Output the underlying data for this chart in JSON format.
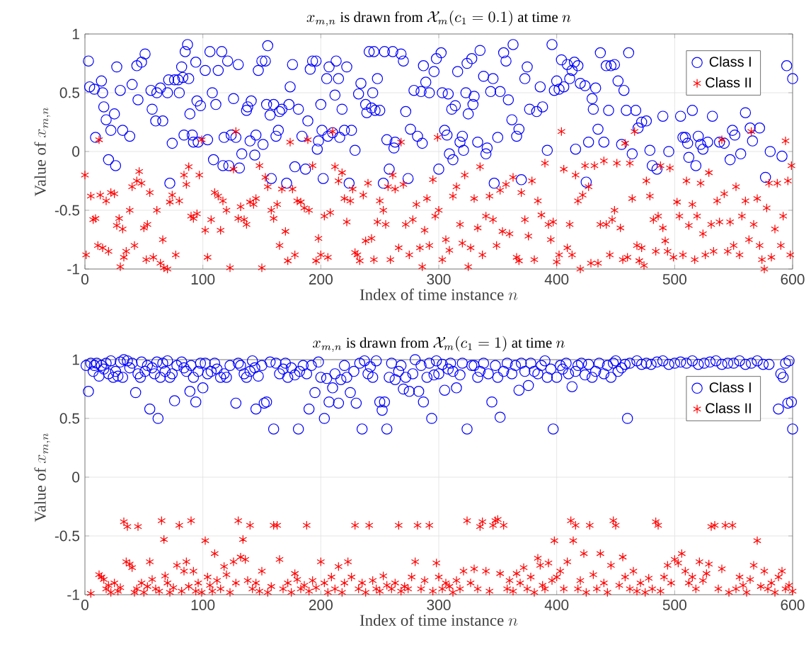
{
  "chart_data": [
    {
      "type": "scatter",
      "title": "x_{m,n} \\mbox{ is drawn from } \\mathcal{X}_m(c_1 = 0.1) \\mbox{ at time } n",
      "xlabel": "\\mbox{Index of time instance } n",
      "ylabel": "\\mbox{Value of } x_{m,n}",
      "xlim": [
        0,
        600
      ],
      "ylim": [
        -1,
        1
      ],
      "xticks": [
        0,
        100,
        200,
        300,
        400,
        500,
        600
      ],
      "yticks": [
        -1,
        -0.5,
        0,
        0.5,
        1
      ],
      "grid": true,
      "legend": "top right",
      "series": [
        {
          "name": "Class I",
          "color": "#0000ff",
          "marker": "circle",
          "x": [
            3,
            4,
            8,
            9,
            14,
            15,
            16,
            18,
            20,
            22,
            25,
            26,
            27,
            30,
            32,
            38,
            40,
            44,
            45,
            48,
            51,
            56,
            57,
            60,
            61,
            64,
            66,
            70,
            71,
            72,
            74,
            76,
            79,
            80,
            82,
            83,
            84,
            85,
            87,
            88,
            89,
            91,
            92,
            94,
            95,
            96,
            98,
            102,
            104,
            106,
            108,
            109,
            111,
            113,
            116,
            117,
            118,
            121,
            122,
            124,
            126,
            128,
            130,
            131,
            133,
            137,
            138,
            140,
            141,
            144,
            145,
            147,
            150,
            151,
            153,
            154,
            155,
            157,
            158,
            160,
            162,
            164,
            165,
            167,
            171,
            173,
            174,
            176,
            178,
            181,
            184,
            187,
            189,
            191,
            193,
            196,
            197,
            198,
            200,
            201,
            202,
            205,
            206,
            207,
            210,
            212,
            213,
            215,
            216,
            218,
            220,
            222,
            224,
            226,
            229,
            232,
            234,
            238,
            239,
            241,
            243,
            244,
            245,
            246,
            248,
            250,
            253,
            254,
            256,
            258,
            261,
            262,
            263,
            268,
            270,
            272,
            274,
            276,
            279,
            282,
            285,
            286,
            287,
            289,
            292,
            296,
            298,
            300,
            302,
            303,
            305,
            307,
            308,
            309,
            311,
            312,
            314,
            316,
            318,
            320,
            321,
            323,
            324,
            325,
            328,
            329,
            330,
            333,
            335,
            338,
            340,
            341,
            344,
            346,
            347,
            350,
            352,
            355,
            357,
            359,
            362,
            363,
            366,
            368,
            370,
            373,
            375,
            377,
            383,
            386,
            388,
            392,
            396,
            398,
            400,
            402,
            404,
            406,
            409,
            411,
            413,
            415,
            416,
            418,
            420,
            424,
            425,
            427,
            430,
            431,
            433,
            435,
            437,
            440,
            442,
            444,
            446,
            449,
            452,
            455,
            457,
            459,
            461,
            464,
            467,
            469,
            472,
            476,
            479,
            481,
            485,
            490,
            495,
            505,
            507,
            509,
            511,
            512,
            515,
            518,
            520,
            522,
            524,
            528,
            532,
            538,
            542,
            547,
            549,
            551,
            556,
            560,
            564,
            566,
            572,
            577,
            581,
            591,
            595,
            600
          ],
          "values": [
            0.77,
            0.55,
            0.53,
            0.12,
            0.6,
            0.5,
            0.38,
            0.27,
            -0.07,
            0.18,
            0.32,
            -0.12,
            0.72,
            0.52,
            0.18,
            0.13,
            0.57,
            0.73,
            0.44,
            0.76,
            0.83,
            0.52,
            0.36,
            0.26,
            0.5,
            0.54,
            0.26,
            0.5,
            0.61,
            -0.27,
            0.07,
            0.61,
            0.61,
            0.5,
            0.72,
            0.63,
            0.14,
            0.85,
            0.91,
            0.62,
            0.32,
            0.14,
            0.08,
            0.76,
            0.43,
            0.08,
            0.39,
            0.69,
            0.1,
            0.85,
            0.5,
            -0.07,
            0.4,
            0.69,
            0.85,
            -0.12,
            0.12,
            0.77,
            -0.12,
            0.14,
            0.45,
            0.12,
            0.74,
            -0.14,
            -0.02,
            0.35,
            0.38,
            0.09,
            0.43,
            -0.03,
            0.14,
            0.69,
            0.77,
            0.06,
            0.77,
            0.4,
            0.9,
            0.31,
            -0.23,
            0.4,
            0.13,
            0.18,
            0.34,
            0.36,
            -0.27,
            0.4,
            0.55,
            0.74,
            -0.13,
            0.36,
            0.13,
            -0.15,
            0.26,
            0.7,
            0.77,
            0.77,
            0.02,
            0.09,
            0.4,
            0.18,
            -0.23,
            0.62,
            0.13,
            0.72,
            0.16,
            0.48,
            0.77,
            0.62,
            0.12,
            0.36,
            0.18,
            0.72,
            -0.27,
            0.18,
            0.01,
            0.49,
            0.58,
            0.4,
            0.33,
            0.85,
            0.37,
            0.5,
            0.85,
            0.35,
            0.62,
            0.35,
            -0.27,
            0.85,
            0.1,
            -0.15,
            0.85,
            0.03,
            0.08,
            0.83,
            0.77,
            0.34,
            -0.23,
            0.19,
            0.52,
            0.13,
            0.51,
            0.07,
            0.73,
            0.59,
            0.5,
            0.68,
            0.79,
            -0.15,
            0.84,
            0.5,
            0.18,
            0.14,
            0.49,
            -0.02,
            0.36,
            -0.07,
            0.39,
            0.68,
            0.08,
            0.13,
            0.01,
            0.5,
            0.75,
            0.32,
            0.79,
            0.4,
            0.47,
            0.08,
            0.86,
            0.64,
            -0.02,
            0.03,
            0.51,
            0.62,
            -0.27,
            0.12,
            0.51,
            0.84,
            0.77,
            0.44,
            0.27,
            0.91,
            0.13,
            0.19,
            -0.24,
            0.62,
            0.72,
            0.36,
            0.34,
            0.55,
            0.38,
            0.01,
            0.91,
            0.52,
            0.6,
            0.53,
            0.78,
            0.55,
            0.74,
            0.62,
            0.69,
            0.76,
            0.02,
            0.73,
            0.58,
            0.56,
            -0.26,
            0.08,
            0.45,
            0.36,
            0.54,
            0.19,
            0.84,
            0.08,
            0.73,
            0.35,
            0.73,
            0.74,
            0.6,
            0.06,
            0.52,
            0.35,
            0.84,
            -0.02,
            0.35,
            0.2,
            0.25,
            0.26,
            0.01,
            -0.12,
            -0.15,
            0.3,
            0.0,
            0.3,
            0.12,
            0.12,
            0.07,
            -0.05,
            0.35,
            -0.12,
            0.13,
            0.06,
            0.02,
            0.08,
            0.3,
            0.08,
            0.07,
            -0.07,
            0.18,
            0.14,
            -0.02,
            0.33,
            0.2,
            0.09,
            0.2,
            -0.22,
            0.0,
            -0.04,
            0.73,
            0.62
          ]
        },
        {
          "name": "Class II",
          "color": "#ff0000",
          "marker": "cross",
          "x": [
            0,
            1,
            5,
            7,
            9,
            11,
            12,
            13,
            15,
            18,
            20,
            22,
            25,
            27,
            29,
            30,
            32,
            33,
            35,
            38,
            40,
            42,
            44,
            46,
            48,
            50,
            52,
            53,
            55,
            58,
            61,
            64,
            66,
            67,
            70,
            72,
            74,
            77,
            80,
            84,
            86,
            88,
            90,
            92,
            95,
            97,
            99,
            102,
            104,
            107,
            110,
            113,
            115,
            117,
            120,
            123,
            126,
            128,
            130,
            132,
            135,
            137,
            140,
            143,
            145,
            148,
            150,
            153,
            155,
            158,
            160,
            163,
            165,
            167,
            170,
            172,
            174,
            176,
            178,
            180,
            183,
            186,
            189,
            190,
            193,
            196,
            198,
            200,
            203,
            206,
            208,
            210,
            212,
            215,
            218,
            220,
            222,
            225,
            227,
            229,
            231,
            233,
            236,
            238,
            240,
            243,
            245,
            248,
            250,
            253,
            255,
            257,
            259,
            261,
            263,
            266,
            268,
            270,
            272,
            275,
            278,
            281,
            284,
            286,
            288,
            290,
            292,
            295,
            297,
            299,
            300,
            303,
            306,
            309,
            312,
            315,
            318,
            320,
            322,
            325,
            327,
            330,
            333,
            335,
            337,
            340,
            343,
            346,
            349,
            352,
            354,
            357,
            360,
            363,
            366,
            368,
            370,
            373,
            376,
            379,
            381,
            384,
            387,
            390,
            393,
            395,
            397,
            400,
            402,
            404,
            406,
            409,
            411,
            413,
            416,
            418,
            420,
            422,
            424,
            427,
            429,
            432,
            435,
            437,
            440,
            442,
            445,
            447,
            449,
            451,
            454,
            456,
            458,
            460,
            462,
            464,
            466,
            468,
            470,
            472,
            474,
            476,
            479,
            482,
            484,
            486,
            488,
            490,
            492,
            494,
            496,
            499,
            502,
            504,
            507,
            510,
            512,
            515,
            517,
            519,
            522,
            524,
            526,
            529,
            531,
            533,
            536,
            538,
            540,
            542,
            545,
            547,
            550,
            552,
            555,
            557,
            560,
            563,
            565,
            567,
            570,
            572,
            574,
            576,
            578,
            580,
            582,
            585,
            587,
            590,
            592,
            594,
            596,
            598,
            599
          ],
          "values": [
            -0.2,
            -0.88,
            -0.38,
            -0.58,
            -0.57,
            -0.8,
            0.1,
            -0.37,
            -0.82,
            -0.42,
            -0.85,
            -0.35,
            -0.36,
            -0.63,
            -0.57,
            -0.98,
            -0.66,
            -0.9,
            -0.85,
            -0.5,
            -0.3,
            -0.8,
            -0.25,
            -0.17,
            -0.27,
            -0.65,
            -0.92,
            -0.62,
            -0.35,
            -0.9,
            -0.5,
            -0.95,
            -0.75,
            -0.99,
            -1.0,
            -0.43,
            -0.37,
            -0.88,
            -0.42,
            -0.2,
            -0.28,
            -0.13,
            -0.55,
            -0.57,
            -0.53,
            -0.2,
            0.1,
            -0.67,
            -0.9,
            -0.58,
            -0.35,
            -0.38,
            -0.67,
            -0.42,
            -0.5,
            -0.99,
            -0.15,
            0.17,
            -0.57,
            -0.47,
            -0.58,
            -0.62,
            -0.43,
            -0.45,
            -0.4,
            -0.12,
            -0.99,
            -0.22,
            -0.3,
            -0.5,
            -0.57,
            -0.45,
            -0.8,
            -0.32,
            -0.68,
            -0.93,
            0.08,
            -0.32,
            -0.88,
            -0.42,
            -0.43,
            -0.48,
            0.1,
            -0.5,
            -0.12,
            -0.93,
            -0.74,
            -0.88,
            -0.55,
            -0.9,
            -0.52,
            0.17,
            -0.13,
            -0.25,
            -0.18,
            -0.4,
            -0.6,
            -0.42,
            -0.32,
            -0.86,
            -0.88,
            -0.93,
            -0.37,
            -0.76,
            -0.27,
            -0.74,
            -0.92,
            -0.6,
            -0.42,
            -0.5,
            -0.62,
            -0.3,
            -0.92,
            -0.2,
            -0.32,
            -0.82,
            0.08,
            -0.28,
            -0.62,
            -0.88,
            -0.58,
            -0.45,
            -0.82,
            -0.98,
            -0.67,
            -0.4,
            -0.8,
            -0.24,
            -0.55,
            0.12,
            -0.5,
            -0.92,
            -0.75,
            -0.84,
            -0.38,
            -0.3,
            -0.62,
            -0.78,
            -0.2,
            -0.98,
            -0.82,
            -0.4,
            -0.65,
            -0.13,
            -0.88,
            -0.55,
            -0.38,
            -0.58,
            -0.8,
            -0.33,
            -0.68,
            -0.28,
            -0.7,
            -0.22,
            -0.9,
            -0.93,
            -0.35,
            -0.58,
            -0.72,
            -0.25,
            -0.92,
            -0.42,
            -0.54,
            -0.1,
            -0.62,
            -0.75,
            -0.6,
            -0.94,
            -0.88,
            0.17,
            -0.15,
            -0.82,
            -0.62,
            -0.88,
            -0.2,
            -0.42,
            -1.0,
            -0.37,
            -0.12,
            -0.3,
            -0.95,
            -0.12,
            -0.95,
            -0.62,
            -0.08,
            -0.62,
            -0.88,
            -0.58,
            -0.5,
            -0.1,
            -0.65,
            -0.92,
            0.07,
            -0.9,
            -0.1,
            -0.4,
            0.17,
            -0.8,
            -0.93,
            -0.82,
            -0.97,
            -0.25,
            -0.38,
            -0.58,
            -0.85,
            -0.55,
            -0.12,
            -0.65,
            -0.76,
            -0.85,
            -0.14,
            -0.9,
            -0.43,
            -0.55,
            -0.88,
            -0.25,
            -0.63,
            -0.45,
            -0.92,
            -0.55,
            -0.27,
            -0.7,
            -0.88,
            -0.18,
            -0.62,
            -0.85,
            -0.42,
            -0.6,
            0.1,
            -0.36,
            -0.85,
            -0.6,
            -0.8,
            -0.3,
            -0.88,
            -0.55,
            -0.42,
            -0.75,
            0.17,
            -0.62,
            -0.4,
            -0.8,
            -0.92,
            -1.0,
            -0.48,
            -0.27,
            -0.9,
            -0.66,
            -0.27,
            -0.8,
            -0.55,
            0.09,
            -0.25,
            -0.88,
            -0.12
          ]
        }
      ]
    },
    {
      "type": "scatter",
      "title": "x_{m,n} \\mbox{ is drawn from } \\mathcal{X}_m(c_1 = 1) \\mbox{ at time } n",
      "xlabel": "\\mbox{Index of time instance } n",
      "ylabel": "\\mbox{Value of } x_{m,n}",
      "xlim": [
        0,
        600
      ],
      "ylim": [
        -1,
        1
      ],
      "xticks": [
        0,
        100,
        200,
        300,
        400,
        500,
        600
      ],
      "yticks": [
        -1,
        -0.5,
        0,
        0.5,
        1
      ],
      "grid": true,
      "legend": "top right",
      "series": [
        {
          "name": "Class I",
          "color": "#0000ff",
          "marker": "circle",
          "x": [
            1,
            3,
            5,
            7,
            8,
            10,
            12,
            14,
            16,
            18,
            20,
            22,
            24,
            26,
            28,
            30,
            32,
            33,
            36,
            38,
            40,
            43,
            45,
            47,
            48,
            51,
            53,
            55,
            57,
            59,
            61,
            62,
            64,
            66,
            68,
            70,
            72,
            74,
            76,
            78,
            82,
            84,
            86,
            89,
            90,
            92,
            94,
            96,
            98,
            100,
            102,
            104,
            107,
            110,
            112,
            115,
            118,
            120,
            123,
            128,
            130,
            132,
            135,
            137,
            140,
            142,
            144,
            145,
            147,
            150,
            152,
            154,
            157,
            160,
            162,
            165,
            168,
            170,
            172,
            175,
            178,
            181,
            182,
            185,
            188,
            190,
            192,
            195,
            198,
            200,
            203,
            205,
            207,
            210,
            212,
            215,
            217,
            220,
            222,
            225,
            228,
            230,
            233,
            235,
            237,
            240,
            242,
            244,
            247,
            250,
            252,
            254,
            256,
            258,
            260,
            263,
            266,
            268,
            270,
            272,
            275,
            278,
            280,
            283,
            285,
            287,
            290,
            292,
            294,
            296,
            298,
            300,
            303,
            305,
            308,
            310,
            312,
            315,
            318,
            320,
            324,
            328,
            330,
            333,
            335,
            338,
            342,
            345,
            348,
            350,
            352,
            355,
            358,
            362,
            365,
            368,
            370,
            373,
            376,
            378,
            381,
            384,
            387,
            390,
            392,
            395,
            397,
            400,
            403,
            405,
            408,
            410,
            413,
            416,
            418,
            421,
            424,
            427,
            430,
            433,
            436,
            440,
            443,
            446,
            448,
            450,
            452,
            455,
            458,
            460,
            462,
            468,
            472,
            476,
            480,
            485,
            490,
            495,
            500,
            505,
            510,
            515,
            520,
            525,
            530,
            535,
            540,
            545,
            550,
            555,
            560,
            565,
            570,
            575,
            580,
            588,
            590,
            592,
            594,
            596,
            597,
            599,
            600
          ],
          "values": [
            0.95,
            0.73,
            0.97,
            0.9,
            0.95,
            0.97,
            0.86,
            0.95,
            0.92,
            0.97,
            0.88,
            0.99,
            0.85,
            0.9,
            0.86,
            0.98,
            0.85,
            1.0,
            0.99,
            0.93,
            0.97,
            0.72,
            0.88,
            0.85,
            0.98,
            0.9,
            0.95,
            0.58,
            0.93,
            0.88,
            0.98,
            0.5,
            0.85,
            0.97,
            0.9,
            0.99,
            0.85,
            0.88,
            0.65,
            0.95,
            0.98,
            0.93,
            0.9,
            0.73,
            0.95,
            0.85,
            0.64,
            0.9,
            0.97,
            0.76,
            0.97,
            0.88,
            0.9,
            0.97,
            0.92,
            0.85,
            0.88,
            0.85,
            0.95,
            0.63,
            0.97,
            0.95,
            0.88,
            0.85,
            0.9,
            0.99,
            0.93,
            0.58,
            0.86,
            0.95,
            0.63,
            0.64,
            0.98,
            0.41,
            0.97,
            0.88,
            0.92,
            0.97,
            0.85,
            0.93,
            0.87,
            0.41,
            0.9,
            0.95,
            0.88,
            0.58,
            0.95,
            0.72,
            0.98,
            0.85,
            0.5,
            0.84,
            0.64,
            0.76,
            0.88,
            0.63,
            0.83,
            0.95,
            0.85,
            0.72,
            0.9,
            0.63,
            0.97,
            0.41,
            0.99,
            0.88,
            0.94,
            0.85,
            0.99,
            0.64,
            0.57,
            0.64,
            0.41,
            0.85,
            0.97,
            0.83,
            0.9,
            0.95,
            0.75,
            0.85,
            0.73,
            0.88,
            1.0,
            0.73,
            0.95,
            0.64,
            0.85,
            0.97,
            0.5,
            0.87,
            0.99,
            0.88,
            0.96,
            0.74,
            0.92,
            0.97,
            0.9,
            0.76,
            0.87,
            0.97,
            0.41,
            0.95,
            0.95,
            0.85,
            0.9,
            0.97,
            0.88,
            0.64,
            0.95,
            0.85,
            0.51,
            0.9,
            0.97,
            0.88,
            0.95,
            0.74,
            0.97,
            0.9,
            0.78,
            0.97,
            0.9,
            0.88,
            0.95,
            0.99,
            0.85,
            0.92,
            0.41,
            0.85,
            0.95,
            0.92,
            0.97,
            0.88,
            0.77,
            0.9,
            0.95,
            0.97,
            0.87,
            0.96,
            0.85,
            0.9,
            0.97,
            0.88,
            0.95,
            0.85,
            0.97,
            0.99,
            0.9,
            0.93,
            0.96,
            0.5,
            0.97,
            0.99,
            0.96,
            0.97,
            0.96,
            0.98,
            0.99,
            0.96,
            0.97,
            0.98,
            0.97,
            0.99,
            0.96,
            0.97,
            0.98,
            0.99,
            0.96,
            0.97,
            0.97,
            0.99,
            0.96,
            0.97,
            0.99,
            0.96,
            0.96,
            0.58,
            0.88,
            0.85,
            0.97,
            0.63,
            0.99,
            0.64,
            0.41
          ]
        },
        {
          "name": "Class II",
          "color": "#ff0000",
          "marker": "cross",
          "x": [
            5,
            12,
            14,
            16,
            18,
            20,
            22,
            25,
            28,
            30,
            33,
            35,
            36,
            38,
            40,
            42,
            44,
            45,
            48,
            50,
            53,
            55,
            57,
            60,
            63,
            65,
            67,
            68,
            70,
            72,
            75,
            78,
            80,
            82,
            84,
            86,
            88,
            90,
            92,
            94,
            96,
            99,
            102,
            104,
            106,
            108,
            110,
            112,
            115,
            118,
            120,
            123,
            126,
            128,
            130,
            132,
            134,
            136,
            138,
            140,
            142,
            145,
            148,
            150,
            155,
            158,
            160,
            163,
            165,
            168,
            172,
            175,
            178,
            180,
            183,
            186,
            188,
            190,
            193,
            196,
            200,
            203,
            206,
            209,
            212,
            215,
            218,
            220,
            223,
            226,
            229,
            232,
            235,
            238,
            241,
            244,
            247,
            250,
            253,
            256,
            260,
            263,
            266,
            268,
            271,
            274,
            277,
            280,
            282,
            285,
            288,
            292,
            295,
            298,
            300,
            303,
            306,
            309,
            312,
            315,
            318,
            321,
            324,
            327,
            330,
            333,
            335,
            337,
            340,
            343,
            346,
            348,
            350,
            352,
            355,
            358,
            360,
            363,
            366,
            369,
            372,
            375,
            378,
            381,
            384,
            386,
            388,
            390,
            393,
            396,
            398,
            400,
            403,
            406,
            409,
            412,
            414,
            416,
            418,
            420,
            423,
            425,
            428,
            431,
            434,
            437,
            440,
            443,
            446,
            448,
            450,
            453,
            456,
            458,
            462,
            465,
            468,
            471,
            475,
            478,
            481,
            484,
            486,
            488,
            491,
            494,
            497,
            500,
            503,
            506,
            509,
            512,
            515,
            518,
            521,
            524,
            527,
            529,
            531,
            534,
            537,
            540,
            543,
            546,
            549,
            552,
            555,
            558,
            561,
            564,
            567,
            570,
            573,
            576,
            579,
            582,
            585,
            588,
            591,
            594,
            597,
            600
          ],
          "values": [
            -0.99,
            -0.83,
            -0.85,
            -0.87,
            -0.95,
            -0.92,
            -0.98,
            -0.9,
            -0.97,
            -0.94,
            -0.38,
            -0.72,
            -0.42,
            -0.74,
            -0.77,
            -0.98,
            -0.95,
            -0.42,
            -0.9,
            -0.98,
            -0.93,
            -0.72,
            -0.87,
            -0.95,
            -0.97,
            -0.37,
            -0.53,
            -0.84,
            -0.9,
            -0.98,
            -0.94,
            -0.75,
            -0.41,
            -0.97,
            -0.8,
            -0.72,
            -0.93,
            -0.37,
            -0.8,
            -0.97,
            -0.9,
            -0.98,
            -0.54,
            -0.85,
            -0.92,
            -0.97,
            -0.65,
            -0.88,
            -0.95,
            -0.76,
            -0.83,
            -0.98,
            -0.72,
            -0.9,
            -0.37,
            -0.68,
            -0.53,
            -0.7,
            -0.88,
            -0.41,
            -0.95,
            -0.9,
            -0.97,
            -0.8,
            -0.98,
            -0.93,
            -0.41,
            -0.41,
            -0.7,
            -0.95,
            -0.9,
            -0.98,
            -0.82,
            -0.87,
            -0.95,
            -0.92,
            -0.41,
            -0.97,
            -0.88,
            -0.94,
            -0.72,
            -0.9,
            -0.98,
            -0.85,
            -0.95,
            -0.76,
            -0.98,
            -0.9,
            -0.72,
            -0.85,
            -0.41,
            -0.95,
            -0.9,
            -0.98,
            -0.41,
            -0.88,
            -0.95,
            -0.97,
            -0.84,
            -0.92,
            -0.95,
            -0.9,
            -0.41,
            -0.97,
            -0.93,
            -0.95,
            -0.85,
            -0.72,
            -0.41,
            -0.95,
            -0.88,
            -0.41,
            -0.97,
            -0.73,
            -0.85,
            -0.95,
            -0.9,
            -0.93,
            -0.98,
            -0.88,
            -0.95,
            -0.8,
            -0.37,
            -0.9,
            -0.78,
            -0.95,
            -0.42,
            -0.38,
            -0.8,
            -0.97,
            -0.41,
            -0.37,
            -0.36,
            -0.82,
            -0.41,
            -0.95,
            -0.88,
            -0.97,
            -0.82,
            -0.9,
            -0.77,
            -0.95,
            -0.85,
            -0.98,
            -0.69,
            -0.75,
            -0.92,
            -0.95,
            -0.73,
            -0.88,
            -0.54,
            -0.85,
            -0.8,
            -0.95,
            -0.72,
            -0.37,
            -0.54,
            -0.41,
            -0.95,
            -0.88,
            -0.65,
            -0.98,
            -0.41,
            -0.83,
            -0.95,
            -0.65,
            -0.9,
            -0.98,
            -0.75,
            -0.37,
            -0.41,
            -0.92,
            -0.68,
            -0.85,
            -0.95,
            -0.8,
            -0.97,
            -0.9,
            -0.98,
            -0.86,
            -0.95,
            -0.38,
            -0.41,
            -0.97,
            -0.85,
            -0.75,
            -0.9,
            -0.7,
            -0.73,
            -0.65,
            -0.8,
            -0.9,
            -0.85,
            -0.95,
            -0.72,
            -0.88,
            -0.82,
            -0.74,
            -0.42,
            -0.41,
            -0.95,
            -0.78,
            -0.41,
            -0.98,
            -0.41,
            -0.95,
            -0.85,
            -0.92,
            -0.98,
            -0.87,
            -0.75,
            -0.54,
            -0.93,
            -0.8,
            -0.95,
            -0.9,
            -0.98,
            -0.85,
            -0.8,
            -0.95,
            -0.92,
            -0.97
          ]
        }
      ]
    }
  ]
}
